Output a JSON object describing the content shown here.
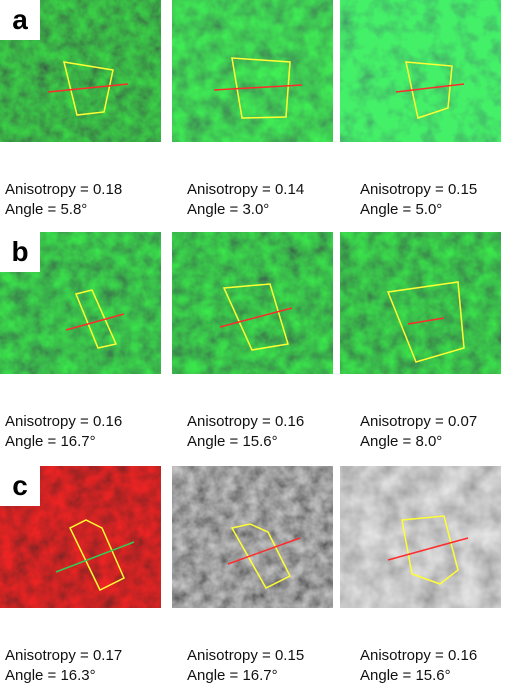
{
  "rows": [
    {
      "letter": "a",
      "panels": [
        {
          "anisotropy": "Anisotropy = 0.18",
          "angle": "Angle = 5.8°"
        },
        {
          "anisotropy": "Anisotropy = 0.14",
          "angle": "Angle = 3.0°"
        },
        {
          "anisotropy": "Anisotropy = 0.15",
          "angle": "Angle = 5.0°"
        }
      ]
    },
    {
      "letter": "b",
      "panels": [
        {
          "anisotropy": "Anisotropy = 0.16",
          "angle": "Angle = 16.7°"
        },
        {
          "anisotropy": "Anisotropy = 0.16",
          "angle": "Angle = 15.6°"
        },
        {
          "anisotropy": "Anisotropy = 0.07",
          "angle": "Angle = 8.0°"
        }
      ]
    },
    {
      "letter": "c",
      "panels": [
        {
          "anisotropy": "Anisotropy = 0.17",
          "angle": "Angle = 16.3°"
        },
        {
          "anisotropy": "Anisotropy = 0.15",
          "angle": "Angle = 16.7°"
        },
        {
          "anisotropy": "Anisotropy = 0.16",
          "angle": "Angle = 15.6°"
        }
      ]
    }
  ],
  "colors": {
    "green_dark": "#0e2e1c",
    "green_bright": "#1fae63",
    "red_dark": "#3a0606",
    "red_bright": "#e01818",
    "gray_dark": "#0a0a0a",
    "gray_bright": "#d8d8d8",
    "outline": "#ffff33",
    "axis_red": "#ff2a2a",
    "axis_green": "#33cc55"
  }
}
